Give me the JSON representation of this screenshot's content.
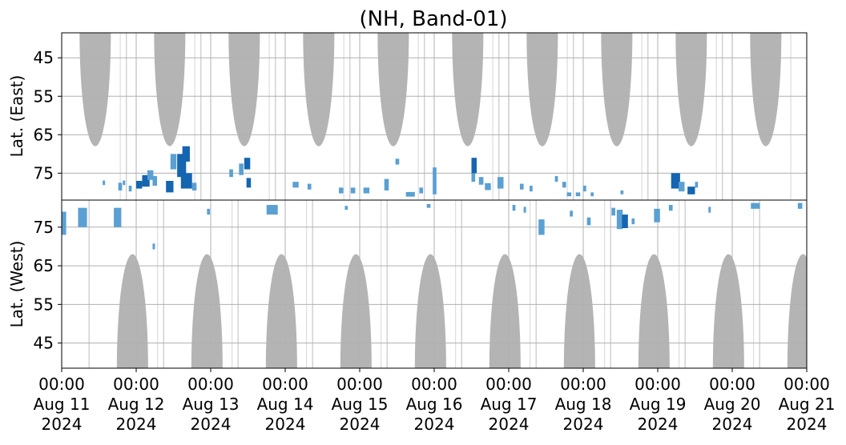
{
  "chart_data": {
    "type": "heatmap",
    "title": "(NH, Band-01)",
    "x_ticks": [
      {
        "time": "00:00",
        "date": "Aug 11",
        "year": "2024"
      },
      {
        "time": "00:00",
        "date": "Aug 12",
        "year": "2024"
      },
      {
        "time": "00:00",
        "date": "Aug 13",
        "year": "2024"
      },
      {
        "time": "00:00",
        "date": "Aug 14",
        "year": "2024"
      },
      {
        "time": "00:00",
        "date": "Aug 15",
        "year": "2024"
      },
      {
        "time": "00:00",
        "date": "Aug 16",
        "year": "2024"
      },
      {
        "time": "00:00",
        "date": "Aug 17",
        "year": "2024"
      },
      {
        "time": "00:00",
        "date": "Aug 18",
        "year": "2024"
      },
      {
        "time": "00:00",
        "date": "Aug 19",
        "year": "2024"
      },
      {
        "time": "00:00",
        "date": "Aug 20",
        "year": "2024"
      },
      {
        "time": "00:00",
        "date": "Aug 21",
        "year": "2024"
      }
    ],
    "x_range": [
      "2024-08-11 00:00",
      "2024-08-21 00:00"
    ],
    "grid": true,
    "colors": {
      "daylight": "#b4b4b4",
      "event_light": "#5aa0d2",
      "event_dark": "#1565b0",
      "grid": "#b0b0b0"
    },
    "panels": [
      {
        "id": "east",
        "ylabel": "Lat. (East)",
        "yticks": [
          45,
          55,
          65,
          75
        ],
        "ylim": [
          38.5,
          82
        ],
        "y_direction": "increasing-down",
        "daylight_lobes": [
          {
            "center_day": 0.45,
            "half_width_day": 0.21,
            "lat_lower": 68
          },
          {
            "center_day": 1.45,
            "half_width_day": 0.21,
            "lat_lower": 68
          },
          {
            "center_day": 2.45,
            "half_width_day": 0.21,
            "lat_lower": 68
          },
          {
            "center_day": 3.45,
            "half_width_day": 0.21,
            "lat_lower": 68
          },
          {
            "center_day": 4.45,
            "half_width_day": 0.21,
            "lat_lower": 68
          },
          {
            "center_day": 5.45,
            "half_width_day": 0.21,
            "lat_lower": 68
          },
          {
            "center_day": 6.45,
            "half_width_day": 0.21,
            "lat_lower": 68
          },
          {
            "center_day": 7.45,
            "half_width_day": 0.21,
            "lat_lower": 68
          },
          {
            "center_day": 8.45,
            "half_width_day": 0.21,
            "lat_lower": 68
          },
          {
            "center_day": 9.45,
            "half_width_day": 0.21,
            "lat_lower": 68
          }
        ],
        "events": [
          {
            "day": 0.55,
            "lat": 77.5,
            "dur": 0.03,
            "dlat": 1.2,
            "level": "light"
          },
          {
            "day": 0.76,
            "lat": 78.5,
            "dur": 0.05,
            "dlat": 2.0,
            "level": "light"
          },
          {
            "day": 0.82,
            "lat": 77.5,
            "dur": 0.03,
            "dlat": 1.2,
            "level": "light"
          },
          {
            "day": 0.9,
            "lat": 79.0,
            "dur": 0.04,
            "dlat": 1.5,
            "level": "light"
          },
          {
            "day": 1.0,
            "lat": 78.0,
            "dur": 0.08,
            "dlat": 2.0,
            "level": "dark"
          },
          {
            "day": 1.08,
            "lat": 77.0,
            "dur": 0.1,
            "dlat": 3.0,
            "level": "dark"
          },
          {
            "day": 1.15,
            "lat": 75.5,
            "dur": 0.08,
            "dlat": 2.5,
            "level": "light"
          },
          {
            "day": 1.22,
            "lat": 77.0,
            "dur": 0.06,
            "dlat": 2.5,
            "level": "light"
          },
          {
            "day": 1.4,
            "lat": 78.5,
            "dur": 0.1,
            "dlat": 3.0,
            "level": "dark"
          },
          {
            "day": 1.46,
            "lat": 72.0,
            "dur": 0.08,
            "dlat": 4.0,
            "level": "light"
          },
          {
            "day": 1.55,
            "lat": 73.0,
            "dur": 0.12,
            "dlat": 6.0,
            "level": "dark"
          },
          {
            "day": 1.6,
            "lat": 77.0,
            "dur": 0.15,
            "dlat": 4.0,
            "level": "dark"
          },
          {
            "day": 1.62,
            "lat": 70.0,
            "dur": 0.1,
            "dlat": 4.0,
            "level": "dark"
          },
          {
            "day": 1.75,
            "lat": 78.5,
            "dur": 0.06,
            "dlat": 2.0,
            "level": "light"
          },
          {
            "day": 2.25,
            "lat": 75.0,
            "dur": 0.05,
            "dlat": 2.0,
            "level": "light"
          },
          {
            "day": 2.38,
            "lat": 74.0,
            "dur": 0.06,
            "dlat": 3.0,
            "level": "light"
          },
          {
            "day": 2.45,
            "lat": 72.5,
            "dur": 0.08,
            "dlat": 3.0,
            "level": "dark"
          },
          {
            "day": 2.48,
            "lat": 77.5,
            "dur": 0.06,
            "dlat": 2.5,
            "level": "dark"
          },
          {
            "day": 3.1,
            "lat": 78.0,
            "dur": 0.08,
            "dlat": 1.5,
            "level": "light"
          },
          {
            "day": 3.3,
            "lat": 78.5,
            "dur": 0.05,
            "dlat": 1.5,
            "level": "light"
          },
          {
            "day": 3.72,
            "lat": 79.5,
            "dur": 0.06,
            "dlat": 1.5,
            "level": "light"
          },
          {
            "day": 3.88,
            "lat": 79.5,
            "dur": 0.06,
            "dlat": 1.5,
            "level": "light"
          },
          {
            "day": 4.05,
            "lat": 79.5,
            "dur": 0.08,
            "dlat": 1.5,
            "level": "light"
          },
          {
            "day": 4.33,
            "lat": 78.0,
            "dur": 0.06,
            "dlat": 3.0,
            "level": "light"
          },
          {
            "day": 4.48,
            "lat": 72.0,
            "dur": 0.05,
            "dlat": 1.5,
            "level": "light"
          },
          {
            "day": 4.62,
            "lat": 80.5,
            "dur": 0.12,
            "dlat": 1.2,
            "level": "light"
          },
          {
            "day": 4.8,
            "lat": 79.5,
            "dur": 0.05,
            "dlat": 1.5,
            "level": "light"
          },
          {
            "day": 4.98,
            "lat": 77.0,
            "dur": 0.05,
            "dlat": 7.0,
            "level": "light"
          },
          {
            "day": 5.5,
            "lat": 76.0,
            "dur": 0.05,
            "dlat": 2.5,
            "level": "light"
          },
          {
            "day": 5.5,
            "lat": 73.0,
            "dur": 0.07,
            "dlat": 4.0,
            "level": "dark"
          },
          {
            "day": 5.6,
            "lat": 77.0,
            "dur": 0.06,
            "dlat": 2.0,
            "level": "light"
          },
          {
            "day": 5.68,
            "lat": 78.5,
            "dur": 0.08,
            "dlat": 1.8,
            "level": "light"
          },
          {
            "day": 5.85,
            "lat": 77.5,
            "dur": 0.08,
            "dlat": 3.0,
            "level": "light"
          },
          {
            "day": 6.15,
            "lat": 78.5,
            "dur": 0.05,
            "dlat": 1.5,
            "level": "light"
          },
          {
            "day": 6.28,
            "lat": 79.0,
            "dur": 0.04,
            "dlat": 1.5,
            "level": "light"
          },
          {
            "day": 6.62,
            "lat": 76.5,
            "dur": 0.04,
            "dlat": 1.5,
            "level": "light"
          },
          {
            "day": 6.72,
            "lat": 78.0,
            "dur": 0.05,
            "dlat": 1.5,
            "level": "light"
          },
          {
            "day": 6.78,
            "lat": 80.5,
            "dur": 0.06,
            "dlat": 1.0,
            "level": "light"
          },
          {
            "day": 6.9,
            "lat": 80.5,
            "dur": 0.06,
            "dlat": 1.0,
            "level": "light"
          },
          {
            "day": 7.0,
            "lat": 79.0,
            "dur": 0.04,
            "dlat": 1.5,
            "level": "light"
          },
          {
            "day": 7.1,
            "lat": 80.5,
            "dur": 0.04,
            "dlat": 1.0,
            "level": "light"
          },
          {
            "day": 7.5,
            "lat": 80.0,
            "dur": 0.04,
            "dlat": 1.0,
            "level": "light"
          },
          {
            "day": 8.18,
            "lat": 77.0,
            "dur": 0.12,
            "dlat": 4.0,
            "level": "dark"
          },
          {
            "day": 8.28,
            "lat": 78.5,
            "dur": 0.08,
            "dlat": 2.5,
            "level": "light"
          },
          {
            "day": 8.4,
            "lat": 79.5,
            "dur": 0.1,
            "dlat": 2.0,
            "level": "dark"
          },
          {
            "day": 8.5,
            "lat": 78.0,
            "dur": 0.04,
            "dlat": 1.5,
            "level": "light"
          }
        ]
      },
      {
        "id": "west",
        "ylabel": "Lat. (West)",
        "yticks": [
          75,
          65,
          55,
          45
        ],
        "ylim": [
          82,
          38.5
        ],
        "y_direction": "increasing-up",
        "daylight_lobes": [
          {
            "center_day": 0.95,
            "half_width_day": 0.21,
            "lat_lower": 68
          },
          {
            "center_day": 1.95,
            "half_width_day": 0.21,
            "lat_lower": 68
          },
          {
            "center_day": 2.95,
            "half_width_day": 0.21,
            "lat_lower": 68
          },
          {
            "center_day": 3.95,
            "half_width_day": 0.21,
            "lat_lower": 68
          },
          {
            "center_day": 4.95,
            "half_width_day": 0.21,
            "lat_lower": 68
          },
          {
            "center_day": 5.95,
            "half_width_day": 0.21,
            "lat_lower": 68
          },
          {
            "center_day": 6.95,
            "half_width_day": 0.21,
            "lat_lower": 68
          },
          {
            "center_day": 7.95,
            "half_width_day": 0.21,
            "lat_lower": 68
          },
          {
            "center_day": 8.95,
            "half_width_day": 0.21,
            "lat_lower": 68
          },
          {
            "center_day": 9.95,
            "half_width_day": 0.21,
            "lat_lower": 68
          }
        ],
        "events": [
          {
            "day": 0.0,
            "lat": 76.0,
            "dur": 0.06,
            "dlat": 6.0,
            "level": "light"
          },
          {
            "day": 0.22,
            "lat": 77.5,
            "dur": 0.12,
            "dlat": 5.0,
            "level": "light"
          },
          {
            "day": 0.7,
            "lat": 77.5,
            "dur": 0.1,
            "dlat": 5.0,
            "level": "light"
          },
          {
            "day": 1.22,
            "lat": 70.0,
            "dur": 0.03,
            "dlat": 1.5,
            "level": "light"
          },
          {
            "day": 1.95,
            "lat": 79.0,
            "dur": 0.04,
            "dlat": 1.5,
            "level": "light"
          },
          {
            "day": 2.75,
            "lat": 79.5,
            "dur": 0.15,
            "dlat": 2.5,
            "level": "light"
          },
          {
            "day": 3.8,
            "lat": 80.0,
            "dur": 0.04,
            "dlat": 1.0,
            "level": "light"
          },
          {
            "day": 4.9,
            "lat": 80.5,
            "dur": 0.05,
            "dlat": 1.0,
            "level": "light"
          },
          {
            "day": 6.05,
            "lat": 80.0,
            "dur": 0.04,
            "dlat": 1.5,
            "level": "light"
          },
          {
            "day": 6.2,
            "lat": 79.5,
            "dur": 0.03,
            "dlat": 1.5,
            "level": "light"
          },
          {
            "day": 6.4,
            "lat": 75.0,
            "dur": 0.08,
            "dlat": 4.0,
            "level": "light"
          },
          {
            "day": 6.82,
            "lat": 78.5,
            "dur": 0.04,
            "dlat": 1.5,
            "level": "light"
          },
          {
            "day": 7.05,
            "lat": 76.5,
            "dur": 0.05,
            "dlat": 2.0,
            "level": "light"
          },
          {
            "day": 7.38,
            "lat": 79.0,
            "dur": 0.05,
            "dlat": 2.0,
            "level": "light"
          },
          {
            "day": 7.45,
            "lat": 77.0,
            "dur": 0.08,
            "dlat": 5.0,
            "level": "light"
          },
          {
            "day": 7.52,
            "lat": 76.5,
            "dur": 0.08,
            "dlat": 3.5,
            "level": "dark"
          },
          {
            "day": 7.65,
            "lat": 76.5,
            "dur": 0.04,
            "dlat": 1.5,
            "level": "light"
          },
          {
            "day": 7.95,
            "lat": 78.0,
            "dur": 0.08,
            "dlat": 3.5,
            "level": "light"
          },
          {
            "day": 8.15,
            "lat": 80.0,
            "dur": 0.05,
            "dlat": 1.5,
            "level": "light"
          },
          {
            "day": 8.68,
            "lat": 79.5,
            "dur": 0.03,
            "dlat": 1.5,
            "level": "light"
          },
          {
            "day": 9.25,
            "lat": 80.5,
            "dur": 0.12,
            "dlat": 1.5,
            "level": "light"
          },
          {
            "day": 9.88,
            "lat": 80.5,
            "dur": 0.06,
            "dlat": 1.5,
            "level": "light"
          }
        ]
      }
    ]
  }
}
